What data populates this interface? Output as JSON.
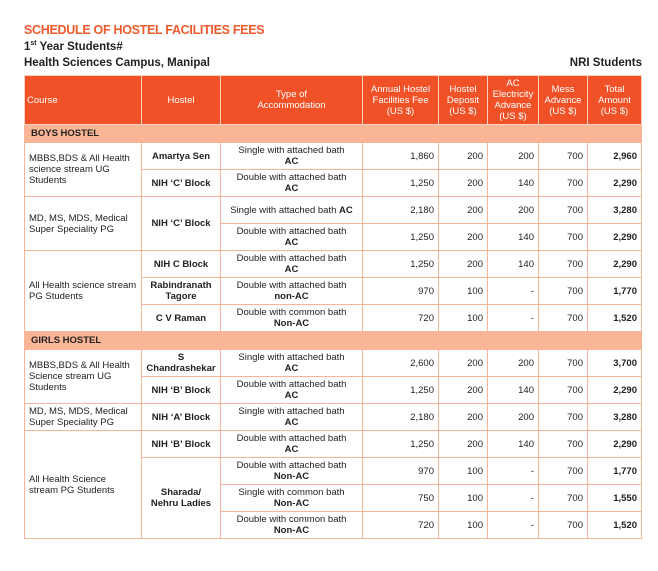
{
  "title": "SCHEDULE OF HOSTEL FACILITIES FEES",
  "subtitle": {
    "ordinal": "1",
    "sup": "st",
    "rest": " Year Students#"
  },
  "campus": "Health Sciences Campus, Manipal",
  "category": "NRI Students",
  "columns": [
    "Course",
    "Hostel",
    "Type of Accommodation",
    "Annual Hostel Facilities Fee (US $)",
    "Hostel Deposit (US $)",
    "AC Electricity Advance (US $)",
    "Mess Advance (US $)",
    "Total Amount (US $)"
  ],
  "sections": [
    {
      "name": "BOYS HOSTEL",
      "rows": [
        {
          "course": "MBBS,BDS & All Health science stream UG Students",
          "course_span": 2,
          "hostel": "Amartya Sen",
          "hostel_span": 1,
          "type": "Single with attached bath",
          "type_b": "AC",
          "fee": "1,860",
          "deposit": "200",
          "ac": "200",
          "mess": "700",
          "total": "2,960"
        },
        {
          "hostel": "NIH ‘C’ Block",
          "hostel_span": 1,
          "type": "Double with attached bath",
          "type_b": "AC",
          "fee": "1,250",
          "deposit": "200",
          "ac": "140",
          "mess": "700",
          "total": "2,290"
        },
        {
          "course": "MD, MS, MDS, Medical Super Speciality PG",
          "course_span": 2,
          "hostel": "NIH ‘C’ Block",
          "hostel_span": 2,
          "type": "Single with attached bath",
          "type_b": "AC",
          "inline": true,
          "fee": "2,180",
          "deposit": "200",
          "ac": "200",
          "mess": "700",
          "total": "3,280"
        },
        {
          "type": "Double with attached bath",
          "type_b": "AC",
          "fee": "1,250",
          "deposit": "200",
          "ac": "140",
          "mess": "700",
          "total": "2,290"
        },
        {
          "course": "All Health science stream PG Students",
          "course_span": 3,
          "hostel": "NIH C Block",
          "hostel_span": 1,
          "type": "Double with attached bath",
          "type_b": "AC",
          "fee": "1,250",
          "deposit": "200",
          "ac": "140",
          "mess": "700",
          "total": "2,290"
        },
        {
          "hostel": "Rabindranath Tagore",
          "hostel_span": 1,
          "type": "Double with attached bath",
          "type_b": "non-AC",
          "fee": "970",
          "deposit": "100",
          "ac": "-",
          "mess": "700",
          "total": "1,770"
        },
        {
          "hostel": "C V Raman",
          "hostel_span": 1,
          "type": "Double with common bath",
          "type_b": "Non-AC",
          "fee": "720",
          "deposit": "100",
          "ac": "-",
          "mess": "700",
          "total": "1,520"
        }
      ]
    },
    {
      "name": "GIRLS HOSTEL",
      "rows": [
        {
          "course": "MBBS,BDS & All Health Science stream UG Students",
          "course_span": 2,
          "hostel": "S Chandrashekar",
          "hostel_span": 1,
          "type": "Single with attached bath",
          "type_b": "AC",
          "fee": "2,600",
          "deposit": "200",
          "ac": "200",
          "mess": "700",
          "total": "3,700"
        },
        {
          "hostel": "NIH ‘B’ Block",
          "hostel_span": 1,
          "type": "Double with attached bath",
          "type_b": "AC",
          "fee": "1,250",
          "deposit": "200",
          "ac": "140",
          "mess": "700",
          "total": "2,290"
        },
        {
          "course": "MD, MS, MDS, Medical Super Speciality PG",
          "course_span": 1,
          "hostel": "NIH ‘A’ Block",
          "hostel_span": 1,
          "type": "Single with attached bath",
          "type_b": "AC",
          "fee": "2,180",
          "deposit": "200",
          "ac": "200",
          "mess": "700",
          "total": "3,280"
        },
        {
          "course": "All Health Science stream PG Students",
          "course_span": 4,
          "hostel": "NIH ‘B’ Block",
          "hostel_span": 1,
          "type": "Double with attached bath",
          "type_b": "AC",
          "fee": "1,250",
          "deposit": "200",
          "ac": "140",
          "mess": "700",
          "total": "2,290"
        },
        {
          "hostel": "Sharada/ Nehru Ladies",
          "hostel_span": 3,
          "type": "Double with attached bath",
          "type_b": "Non-AC",
          "fee": "970",
          "deposit": "100",
          "ac": "-",
          "mess": "700",
          "total": "1,770"
        },
        {
          "type": "Single with common bath",
          "type_b": "Non-AC",
          "fee": "750",
          "deposit": "100",
          "ac": "-",
          "mess": "700",
          "total": "1,550"
        },
        {
          "type": "Double with common bath",
          "type_b": "Non-AC",
          "fee": "720",
          "deposit": "100",
          "ac": "-",
          "mess": "700",
          "total": "1,520"
        }
      ]
    }
  ],
  "colors": {
    "accent": "#f05127",
    "section": "#f9b596",
    "border": "#f7b59a"
  }
}
